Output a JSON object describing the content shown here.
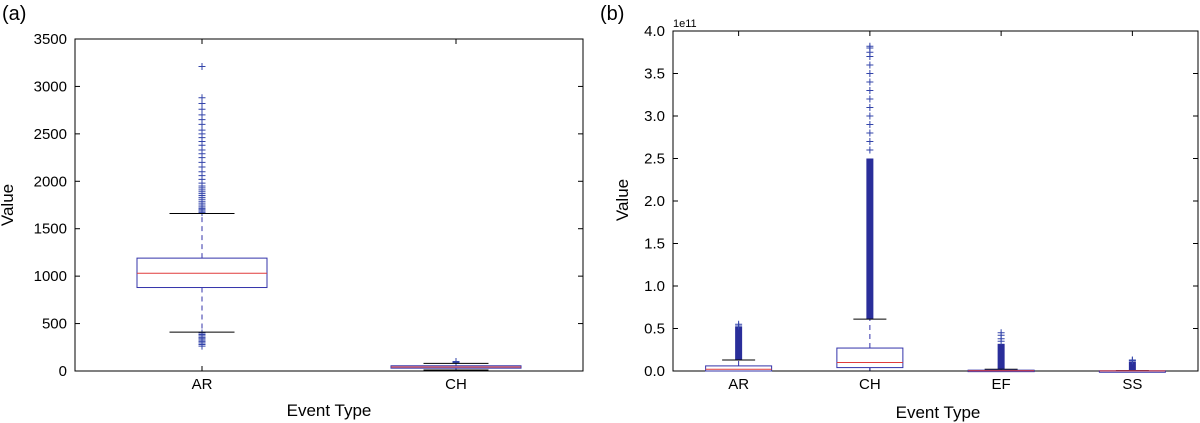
{
  "chart_data": [
    {
      "panel_label": "(a)",
      "type": "box",
      "xlabel": "Event Type",
      "ylabel": "Value",
      "ylim": [
        0,
        3500
      ],
      "yticks": [
        0,
        500,
        1000,
        1500,
        2000,
        2500,
        3000,
        3500
      ],
      "ytick_labels": [
        "0",
        "500",
        "1000",
        "1500",
        "2000",
        "2500",
        "3000",
        "3500"
      ],
      "categories": [
        "AR",
        "CH"
      ],
      "boxes": [
        {
          "category": "AR",
          "whislo": 410,
          "q1": 880,
          "med": 1030,
          "q3": 1190,
          "whishi": 1660,
          "fliers_low": [
            400,
            385,
            370,
            355,
            340,
            325,
            310,
            295,
            280,
            262
          ],
          "fliers_high": [
            1670,
            1685,
            1700,
            1715,
            1730,
            1750,
            1770,
            1790,
            1810,
            1830,
            1850,
            1870,
            1890,
            1910,
            1930,
            1950,
            1980,
            2020,
            2060,
            2100,
            2150,
            2200,
            2250,
            2290,
            2330,
            2380,
            2420,
            2460,
            2500,
            2540,
            2600,
            2650,
            2700,
            2760,
            2820,
            2880,
            3210
          ]
        },
        {
          "category": "CH",
          "whislo": 10,
          "q1": 30,
          "med": 42,
          "q3": 55,
          "whishi": 80,
          "fliers_low": [],
          "fliers_high": [
            85,
            92,
            100
          ]
        }
      ],
      "colors": {
        "box": "#3333aa",
        "median": "#e03c3c",
        "whisker_cap": "#000000",
        "flier": "#3344aa"
      }
    },
    {
      "panel_label": "(b)",
      "type": "box",
      "xlabel": "Event Type",
      "ylabel": "Value",
      "scale_label": "1e11",
      "ylim": [
        0,
        4.0
      ],
      "yticks": [
        0,
        0.5,
        1.0,
        1.5,
        2.0,
        2.5,
        3.0,
        3.5,
        4.0
      ],
      "ytick_labels": [
        "0.0",
        "0.5",
        "1.0",
        "1.5",
        "2.0",
        "2.5",
        "3.0",
        "3.5",
        "4.0"
      ],
      "categories": [
        "AR",
        "CH",
        "EF",
        "SS"
      ],
      "boxes": [
        {
          "category": "AR",
          "whislo": 0.0,
          "q1": 0.0,
          "med": 0.02,
          "q3": 0.06,
          "whishi": 0.13,
          "fliers_low": [],
          "flier_high_dense_to": 0.52,
          "fliers_high": [
            0.53,
            0.55
          ]
        },
        {
          "category": "CH",
          "whislo": 0.0,
          "q1": 0.04,
          "med": 0.1,
          "q3": 0.27,
          "whishi": 0.61,
          "fliers_low": [],
          "flier_high_dense_to": 2.5,
          "fliers_high": [
            2.6,
            2.7,
            2.8,
            2.9,
            3.0,
            3.1,
            3.2,
            3.3,
            3.4,
            3.5,
            3.6,
            3.7,
            3.75,
            3.8,
            3.82
          ]
        },
        {
          "category": "EF",
          "whislo": 0.0,
          "q1": 0.0,
          "med": 0.003,
          "q3": 0.01,
          "whishi": 0.02,
          "fliers_low": [],
          "flier_high_dense_to": 0.32,
          "fliers_high": [
            0.35,
            0.38,
            0.42,
            0.45
          ]
        },
        {
          "category": "SS",
          "whislo": 0.0,
          "q1": 0.0,
          "med": 0.001,
          "q3": 0.003,
          "whishi": 0.006,
          "fliers_low": [],
          "flier_high_dense_to": 0.11,
          "fliers_high": [
            0.12,
            0.13
          ]
        }
      ],
      "colors": {
        "box": "#3333aa",
        "median": "#e03c3c",
        "whisker_cap": "#000000",
        "flier": "#3344aa"
      }
    }
  ]
}
